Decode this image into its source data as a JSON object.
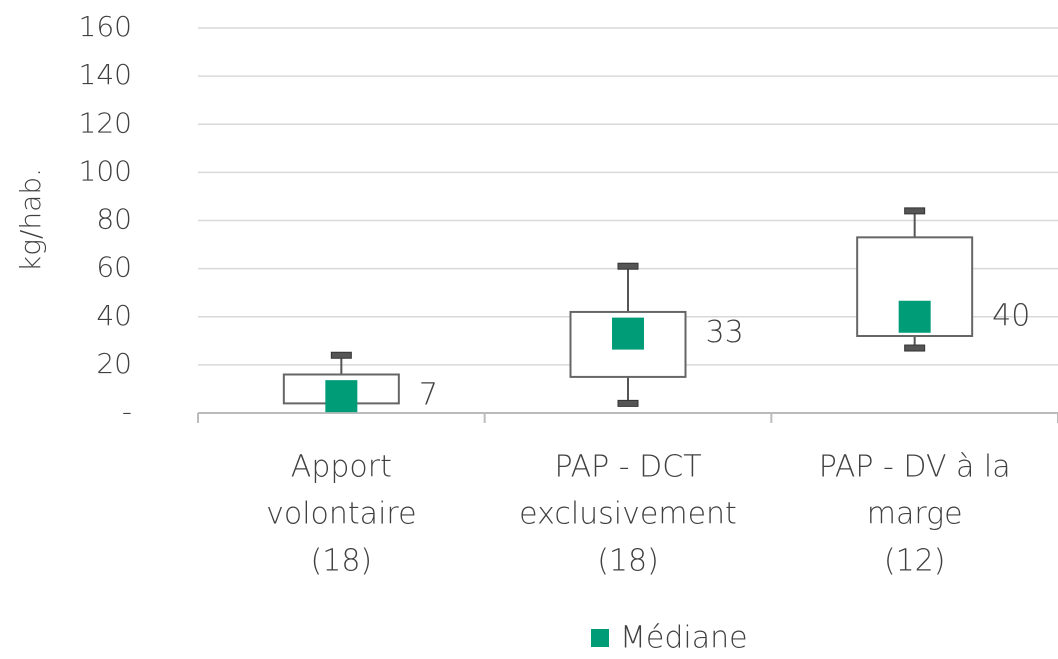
{
  "chart_data": {
    "type": "box",
    "y_label": "kg/hab.",
    "categories": [
      [
        "Apport",
        "volontaire",
        "(18)"
      ],
      [
        "PAP - DCT",
        "exclusivement",
        "(18)"
      ],
      [
        "PAP - DV à la",
        "marge",
        "(12)"
      ]
    ],
    "boxes": [
      {
        "min": 2.5,
        "q1": 4,
        "q3": 16,
        "max": 24,
        "median": 7
      },
      {
        "min": 4,
        "q1": 15,
        "q3": 42,
        "max": 61,
        "median": 33
      },
      {
        "min": 27,
        "q1": 32,
        "q3": 73,
        "max": 84,
        "median": 40
      }
    ],
    "legend": "Médiane",
    "median_color": "#009b77",
    "ylim": [
      0,
      160
    ],
    "yticks": [
      {
        "value": 0,
        "label": "-"
      },
      20,
      40,
      60,
      80,
      100,
      120,
      140,
      160
    ],
    "grid": true
  }
}
